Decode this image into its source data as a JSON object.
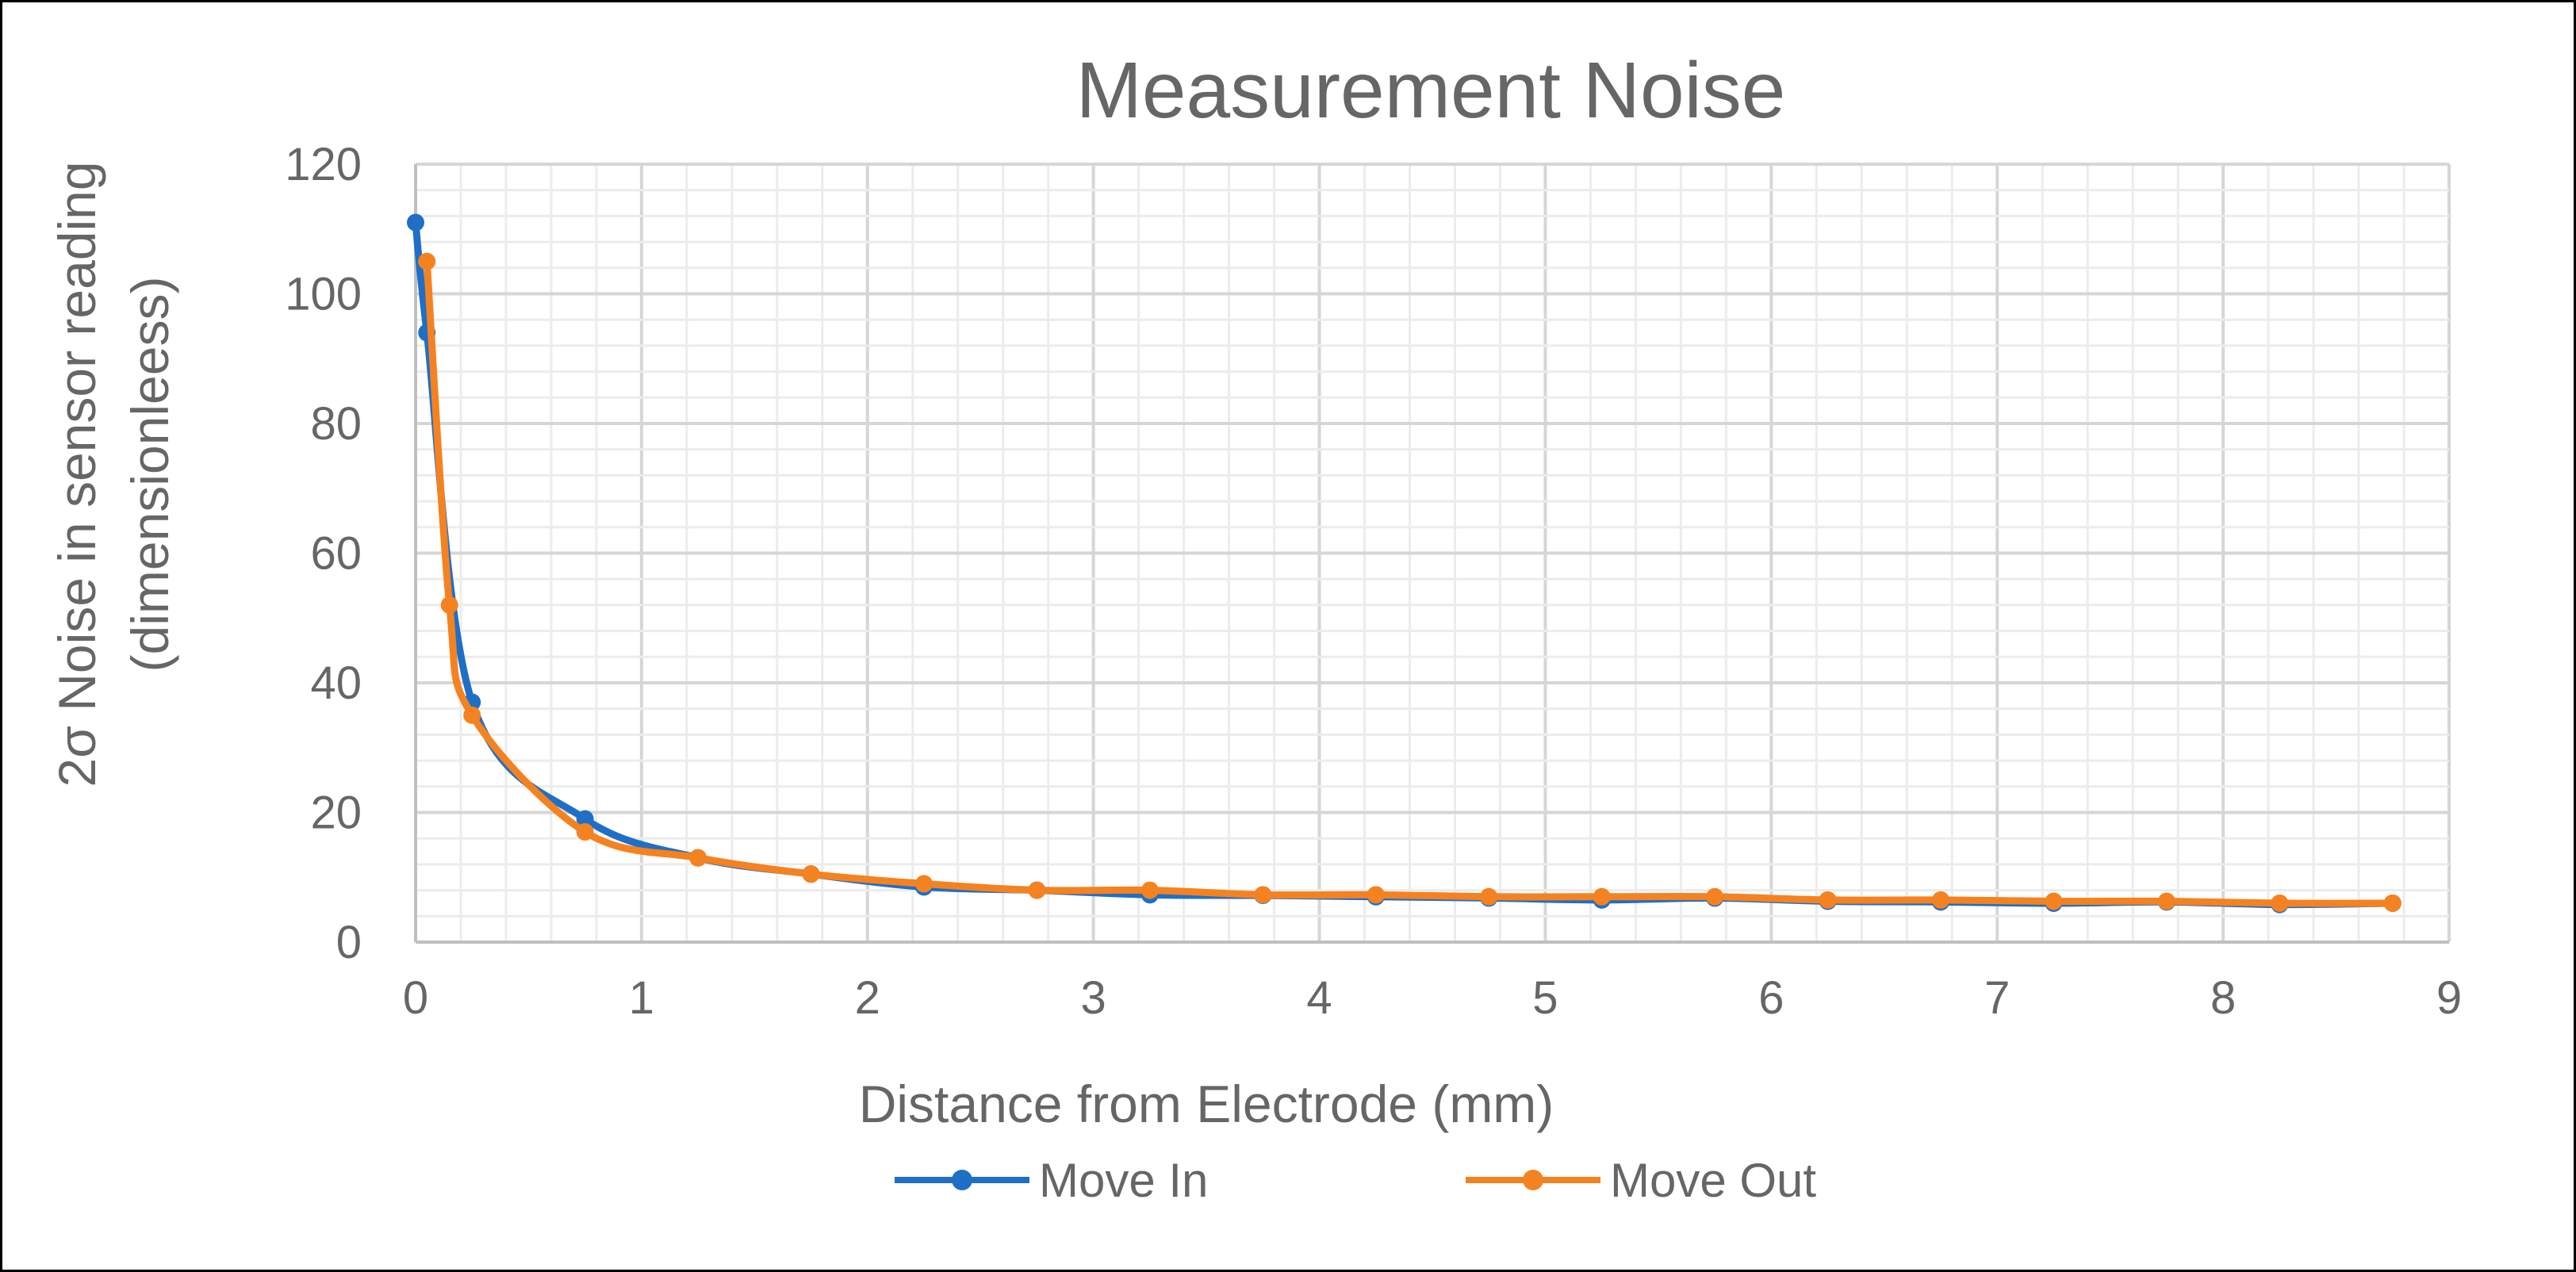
{
  "chart_data": {
    "type": "line",
    "title": "Measurement Noise",
    "xlabel": "Distance from Electrode (mm)",
    "ylabel_line1": "2σ Noise in sensor reading",
    "ylabel_line2": "(dimensionleess)",
    "xlim": [
      0,
      9
    ],
    "ylim": [
      0,
      120
    ],
    "x_ticks": [
      "0",
      "1",
      "2",
      "3",
      "4",
      "5",
      "6",
      "7",
      "8",
      "9"
    ],
    "y_ticks": [
      "0",
      "20",
      "40",
      "60",
      "80",
      "100",
      "120"
    ],
    "grid": true,
    "legend_position": "bottom",
    "series": [
      {
        "name": "Move In",
        "color": "#1f6fc6",
        "x": [
          0.0,
          0.05,
          0.25,
          0.75,
          1.25,
          1.75,
          2.25,
          2.75,
          3.25,
          3.75,
          4.25,
          4.75,
          5.25,
          5.75,
          6.25,
          6.75,
          7.25,
          7.75,
          8.25,
          8.75
        ],
        "y": [
          111,
          94,
          37,
          19,
          13,
          10.5,
          8.5,
          8,
          7.3,
          7.2,
          7,
          6.8,
          6.5,
          6.8,
          6.3,
          6.2,
          6,
          6.2,
          5.8,
          6
        ]
      },
      {
        "name": "Move Out",
        "color": "#f58220",
        "x": [
          0.05,
          0.15,
          0.25,
          0.75,
          1.25,
          1.75,
          2.25,
          2.75,
          3.25,
          3.75,
          4.25,
          4.75,
          5.25,
          5.75,
          6.25,
          6.75,
          7.25,
          7.75,
          8.25,
          8.75
        ],
        "y": [
          105,
          52,
          35,
          17,
          13,
          10.5,
          9,
          8,
          8,
          7.3,
          7.3,
          7,
          7,
          7,
          6.5,
          6.5,
          6.3,
          6.3,
          6,
          6
        ]
      }
    ]
  }
}
